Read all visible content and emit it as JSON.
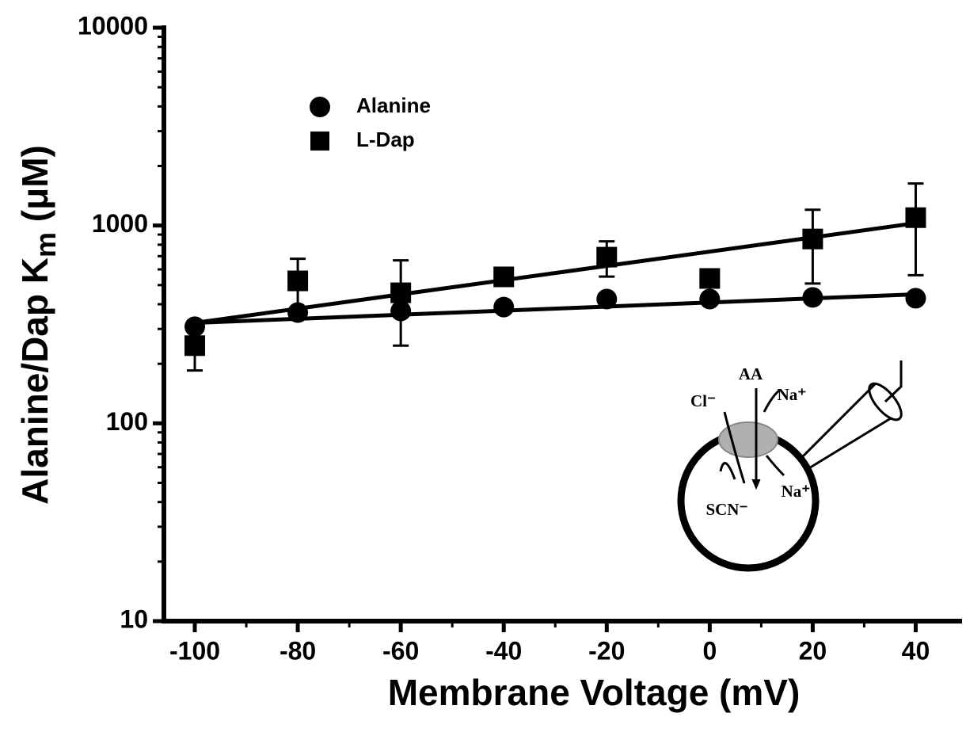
{
  "chart_data": {
    "type": "scatter",
    "xlabel": "Membrane Voltage (mV)",
    "ylabel": [
      "Alanine/Dap K",
      "m",
      " (μM)"
    ],
    "x": [
      -100,
      -80,
      -60,
      -40,
      -20,
      0,
      20,
      40
    ],
    "series": [
      {
        "name": "Alanine",
        "marker": "circle",
        "color": "#000000",
        "values": [
          308,
          363,
          370,
          387,
          425,
          425,
          433,
          429
        ],
        "errors": [
          null,
          null,
          null,
          null,
          null,
          null,
          null,
          null
        ],
        "fit_x": [
          -100,
          40
        ],
        "fit_values": [
          322,
          449
        ]
      },
      {
        "name": "L-Dap",
        "marker": "square",
        "color": "#000000",
        "values": [
          247,
          525,
          457,
          550,
          692,
          540,
          855,
          1096
        ],
        "errors": [
          62,
          154,
          210,
          null,
          140,
          null,
          346,
          535
        ],
        "fit_x": [
          -100,
          40
        ],
        "fit_values": [
          322,
          1028
        ]
      }
    ],
    "xlim": [
      -106,
      49
    ],
    "xticks": [
      -100,
      -80,
      -60,
      -40,
      -20,
      0,
      20,
      40
    ],
    "ylim": [
      10,
      10000
    ],
    "yticks": [
      10,
      100,
      1000,
      10000
    ],
    "log_y": true,
    "minor_ticks": true,
    "grid": false,
    "legend": "upper left",
    "inset": {
      "labels": [
        "AA",
        "Cl⁻",
        "Na⁺",
        "Na⁺",
        "SCN⁻"
      ]
    }
  }
}
